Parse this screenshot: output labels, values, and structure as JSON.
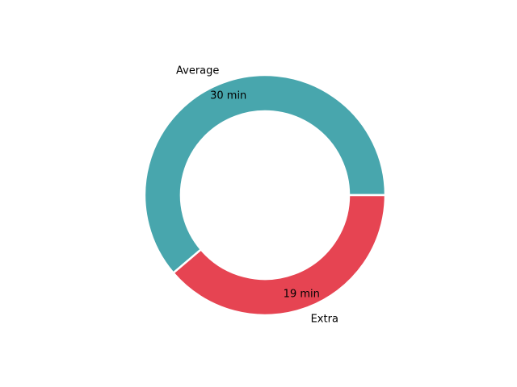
{
  "chart_data": {
    "type": "pie",
    "style": "donut",
    "title": "",
    "categories": [
      "Average",
      "Extra"
    ],
    "values": [
      30,
      19
    ],
    "value_labels": [
      "30 min",
      "19 min"
    ],
    "colors": [
      "#48a6ad",
      "#e64452"
    ],
    "legend": "none",
    "start_angle_deg": 0,
    "direction": "counterclockwise"
  }
}
